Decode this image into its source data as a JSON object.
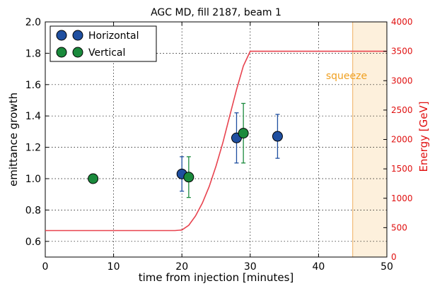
{
  "chart_data": {
    "type": "scatter",
    "title": "AGC MD, fill 2187, beam 1",
    "xlabel": "time from injection [minutes]",
    "ylabel": "emittance growth",
    "y2label": "Energy [GeV]",
    "xlim": [
      0,
      50
    ],
    "ylim": [
      0.5,
      2.0
    ],
    "y2lim": [
      0,
      4000
    ],
    "x_ticks": [
      0,
      10,
      20,
      30,
      40,
      50
    ],
    "y_ticks": [
      0.6,
      0.8,
      1.0,
      1.2,
      1.4,
      1.6,
      1.8,
      2.0
    ],
    "y2_ticks": [
      0,
      500,
      1000,
      1500,
      2000,
      2500,
      3000,
      3500,
      4000
    ],
    "grid": true,
    "legend_position": "top-left",
    "series": [
      {
        "name": "Horizontal",
        "color": "#1f4fa0",
        "points": [
          {
            "x": 20.0,
            "y": 1.03,
            "err": 0.11
          },
          {
            "x": 28.0,
            "y": 1.26,
            "err": 0.16
          },
          {
            "x": 34.0,
            "y": 1.27,
            "err": 0.14
          }
        ]
      },
      {
        "name": "Vertical",
        "color": "#1a8a3c",
        "points": [
          {
            "x": 7.0,
            "y": 1.0,
            "err": 0.0
          },
          {
            "x": 21.0,
            "y": 1.01,
            "err": 0.13
          },
          {
            "x": 29.0,
            "y": 1.29,
            "err": 0.19
          }
        ]
      }
    ],
    "energy_curve": {
      "color": "#e8434f",
      "points": [
        [
          0,
          450
        ],
        [
          19,
          450
        ],
        [
          20,
          460
        ],
        [
          21,
          540
        ],
        [
          22,
          700
        ],
        [
          23,
          920
        ],
        [
          24,
          1200
        ],
        [
          25,
          1550
        ],
        [
          26,
          1950
        ],
        [
          27,
          2400
        ],
        [
          28,
          2850
        ],
        [
          29,
          3250
        ],
        [
          30,
          3500
        ],
        [
          31,
          3500
        ],
        [
          50,
          3500
        ]
      ]
    },
    "squeeze_region": {
      "x_start": 45,
      "x_end": 50,
      "label": "squeeze",
      "fill_color": "#fdf0dc",
      "border_color": "#f0b060",
      "label_color": "#f0a020"
    },
    "axis2_color": "#e01010"
  }
}
